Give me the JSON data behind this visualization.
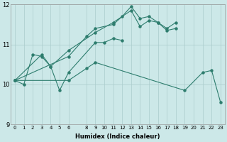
{
  "xlabel": "Humidex (Indice chaleur)",
  "bg_color": "#cce8e8",
  "grid_color": "#aacccc",
  "line_color": "#2e7d6e",
  "xlim": [
    -0.5,
    23.5
  ],
  "ylim": [
    9,
    12
  ],
  "yticks": [
    9,
    10,
    11,
    12
  ],
  "xticks": [
    0,
    1,
    2,
    3,
    4,
    5,
    6,
    8,
    9,
    10,
    11,
    12,
    13,
    14,
    15,
    16,
    17,
    18,
    19,
    20,
    21,
    22,
    23
  ],
  "series": [
    {
      "x": [
        0,
        1,
        2,
        3,
        4,
        5,
        6,
        9,
        10,
        11,
        12
      ],
      "y": [
        10.1,
        10.0,
        10.75,
        10.7,
        10.45,
        9.85,
        10.3,
        11.05,
        11.05,
        11.15,
        11.1
      ]
    },
    {
      "x": [
        0,
        3,
        4,
        6,
        9,
        11,
        13,
        14,
        15,
        16,
        17,
        18
      ],
      "y": [
        10.1,
        10.75,
        10.45,
        10.85,
        11.3,
        11.55,
        11.85,
        11.45,
        11.6,
        11.55,
        11.35,
        11.4
      ]
    },
    {
      "x": [
        0,
        6,
        8,
        9,
        11,
        12,
        13,
        14,
        15,
        16,
        17,
        18
      ],
      "y": [
        10.1,
        10.7,
        11.2,
        11.4,
        11.5,
        11.7,
        11.95,
        11.65,
        11.7,
        11.55,
        11.4,
        11.55
      ]
    },
    {
      "x": [
        0,
        6,
        8,
        9,
        19,
        21,
        22,
        23
      ],
      "y": [
        10.1,
        10.1,
        10.4,
        10.55,
        9.85,
        10.3,
        10.35,
        9.55
      ]
    }
  ]
}
